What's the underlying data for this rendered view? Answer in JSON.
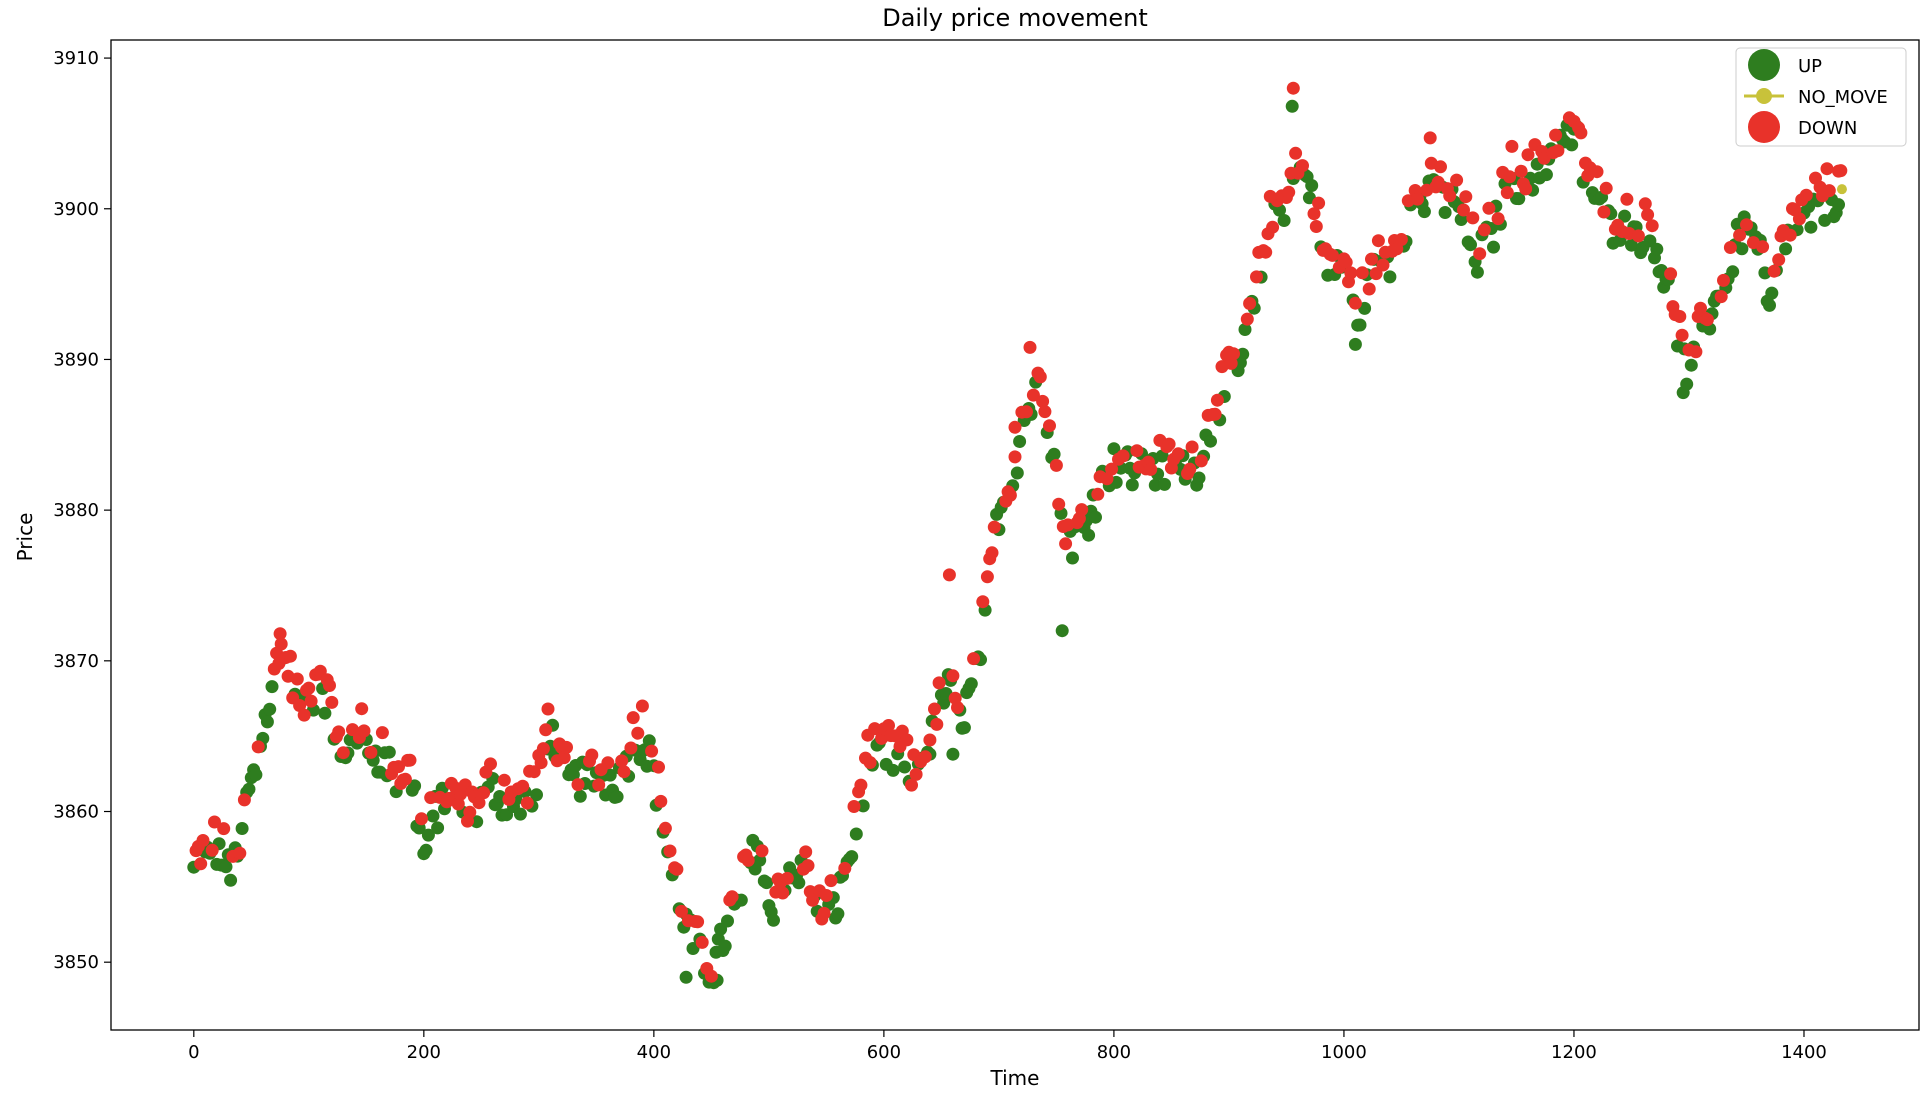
{
  "chart_data": {
    "type": "scatter",
    "title": "Daily price movement",
    "xlabel": "Time",
    "ylabel": "Price",
    "xlim": [
      -72,
      1500
    ],
    "ylim": [
      3845.5,
      3911.2
    ],
    "xticks": [
      0,
      200,
      400,
      600,
      800,
      1000,
      1200,
      1400
    ],
    "yticks": [
      3850,
      3860,
      3870,
      3880,
      3890,
      3900,
      3910
    ],
    "grid": false,
    "legend_position": "top-right",
    "legend": [
      {
        "label": "UP",
        "color": "#2e7d1f"
      },
      {
        "label": "NO_MOVE",
        "color": "#c8c23a"
      },
      {
        "label": "DOWN",
        "color": "#e8322a"
      }
    ],
    "price_path": [
      [
        0,
        3856.4
      ],
      [
        10,
        3857.2
      ],
      [
        20,
        3858.0
      ],
      [
        30,
        3856.8
      ],
      [
        40,
        3856.9
      ],
      [
        45,
        3861.0
      ],
      [
        55,
        3863.5
      ],
      [
        60,
        3866.0
      ],
      [
        68,
        3868.0
      ],
      [
        75,
        3871.0
      ],
      [
        85,
        3868.5
      ],
      [
        95,
        3866.5
      ],
      [
        110,
        3869.5
      ],
      [
        120,
        3866.5
      ],
      [
        130,
        3863.0
      ],
      [
        140,
        3866.0
      ],
      [
        150,
        3864.5
      ],
      [
        165,
        3864.0
      ],
      [
        180,
        3862.0
      ],
      [
        190,
        3862.5
      ],
      [
        200,
        3857.5
      ],
      [
        210,
        3860.5
      ],
      [
        220,
        3861.0
      ],
      [
        240,
        3860.0
      ],
      [
        260,
        3862.0
      ],
      [
        280,
        3860.5
      ],
      [
        300,
        3862.0
      ],
      [
        310,
        3866.0
      ],
      [
        320,
        3862.5
      ],
      [
        340,
        3862.5
      ],
      [
        370,
        3862.5
      ],
      [
        385,
        3865.5
      ],
      [
        395,
        3864.5
      ],
      [
        405,
        3861.0
      ],
      [
        415,
        3856.5
      ],
      [
        425,
        3853.5
      ],
      [
        435,
        3851.5
      ],
      [
        450,
        3849.5
      ],
      [
        460,
        3852.0
      ],
      [
        475,
        3854.5
      ],
      [
        490,
        3858.5
      ],
      [
        500,
        3854.0
      ],
      [
        515,
        3855.5
      ],
      [
        530,
        3856.5
      ],
      [
        545,
        3853.0
      ],
      [
        560,
        3854.5
      ],
      [
        575,
        3859.0
      ],
      [
        585,
        3863.5
      ],
      [
        600,
        3864.0
      ],
      [
        615,
        3864.0
      ],
      [
        625,
        3862.0
      ],
      [
        635,
        3864.0
      ],
      [
        645,
        3866.0
      ],
      [
        655,
        3869.0
      ],
      [
        665,
        3866.0
      ],
      [
        680,
        3869.5
      ],
      [
        690,
        3874.0
      ],
      [
        700,
        3880.5
      ],
      [
        710,
        3881.5
      ],
      [
        720,
        3886.0
      ],
      [
        735,
        3888.5
      ],
      [
        745,
        3886.0
      ],
      [
        755,
        3878.5
      ],
      [
        770,
        3878.5
      ],
      [
        785,
        3881.5
      ],
      [
        800,
        3883.5
      ],
      [
        820,
        3883.0
      ],
      [
        840,
        3883.0
      ],
      [
        860,
        3883.0
      ],
      [
        875,
        3883.5
      ],
      [
        890,
        3887.5
      ],
      [
        910,
        3890.0
      ],
      [
        925,
        3895.0
      ],
      [
        935,
        3899.0
      ],
      [
        950,
        3901.0
      ],
      [
        960,
        3903.0
      ],
      [
        970,
        3902.0
      ],
      [
        985,
        3896.0
      ],
      [
        1000,
        3896.5
      ],
      [
        1010,
        3893.0
      ],
      [
        1025,
        3896.0
      ],
      [
        1040,
        3897.0
      ],
      [
        1060,
        3900.5
      ],
      [
        1080,
        3901.5
      ],
      [
        1100,
        3900.5
      ],
      [
        1115,
        3897.0
      ],
      [
        1130,
        3899.0
      ],
      [
        1145,
        3902.5
      ],
      [
        1160,
        3902.0
      ],
      [
        1180,
        3904.0
      ],
      [
        1200,
        3905.5
      ],
      [
        1210,
        3902.5
      ],
      [
        1230,
        3899.5
      ],
      [
        1250,
        3899.0
      ],
      [
        1270,
        3898.5
      ],
      [
        1285,
        3894.0
      ],
      [
        1300,
        3889.0
      ],
      [
        1315,
        3893.0
      ],
      [
        1330,
        3895.0
      ],
      [
        1345,
        3899.0
      ],
      [
        1360,
        3898.0
      ],
      [
        1370,
        3893.5
      ],
      [
        1385,
        3898.5
      ],
      [
        1400,
        3899.5
      ],
      [
        1420,
        3901.0
      ],
      [
        1433,
        3901.5
      ]
    ],
    "series": [
      {
        "name": "UP",
        "color": "#2e7d1f",
        "points": []
      },
      {
        "name": "NO_MOVE",
        "color": "#c8c23a",
        "points": [
          [
            1433,
            3901.3
          ]
        ]
      },
      {
        "name": "DOWN",
        "color": "#e8322a",
        "points": []
      }
    ],
    "notable_points": {
      "up": [
        [
          428,
          3849.0
        ],
        [
          455,
          3848.8
        ],
        [
          755,
          3872.0
        ],
        [
          1010,
          3891.0
        ],
        [
          1295,
          3887.8
        ],
        [
          955,
          3906.8
        ],
        [
          640,
          3863.8
        ],
        [
          660,
          3863.8
        ]
      ],
      "down": [
        [
          956,
          3908.0
        ],
        [
          1075,
          3904.7
        ],
        [
          657,
          3875.7
        ],
        [
          714,
          3885.5
        ],
        [
          727,
          3890.8
        ],
        [
          390,
          3867.0
        ],
        [
          308,
          3866.8
        ],
        [
          75,
          3871.8
        ],
        [
          1200,
          3905.8
        ],
        [
          1430,
          3902.5
        ]
      ]
    }
  }
}
